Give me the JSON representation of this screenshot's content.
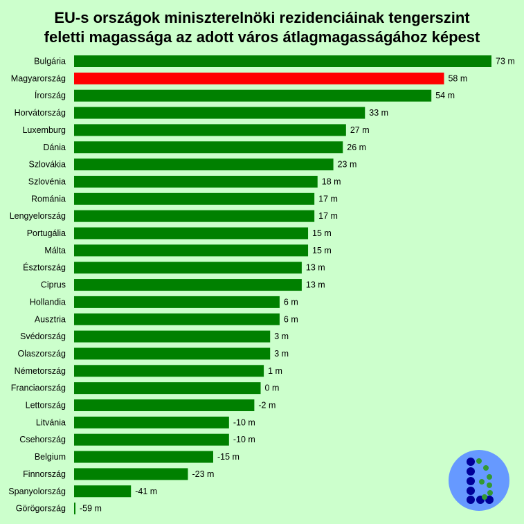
{
  "chart_data": {
    "type": "bar",
    "orientation": "horizontal",
    "title_line1": "EU-s országok miniszterelnöki rezidenciáinak tengerszint",
    "title_line2": "feletti magassága az adott város átlagmagasságához képest",
    "unit": "m",
    "categories": [
      "Bulgária",
      "Magyarország",
      "Írország",
      "Horvátország",
      "Luxemburg",
      "Dánia",
      "Szlovákia",
      "Szlovénia",
      "Románia",
      "Lengyelország",
      "Portugália",
      "Málta",
      "Észtország",
      "Ciprus",
      "Hollandia",
      "Ausztria",
      "Svédország",
      "Olaszország",
      "Németország",
      "Franciaország",
      "Lettország",
      "Litvánia",
      "Csehország",
      "Belgium",
      "Finnország",
      "Spanyolország",
      "Görögország"
    ],
    "values": [
      73,
      58,
      54,
      33,
      27,
      26,
      23,
      18,
      17,
      17,
      15,
      15,
      13,
      13,
      6,
      6,
      3,
      3,
      1,
      0,
      -2,
      -10,
      -10,
      -15,
      -23,
      -41,
      -59
    ],
    "labels": [
      "73 m",
      "58 m",
      "54 m",
      "33 m",
      "27 m",
      "26 m",
      "23 m",
      "18 m",
      "17 m",
      "17 m",
      "15 m",
      "15 m",
      "13 m",
      "13 m",
      "6 m",
      "6 m",
      "3 m",
      "3 m",
      "1 m",
      "0 m",
      "-2 m",
      "-10 m",
      "-10 m",
      "-15 m",
      "-23 m",
      "-41 m",
      "-59 m"
    ],
    "highlight_category": "Magyarország",
    "colors": {
      "bar": "#008000",
      "highlight": "#ff0000",
      "background": "#ccffcc"
    },
    "legend": "none",
    "grid": false
  },
  "logo": {
    "name": "dotted-b-logo",
    "circle_color": "#6699ff",
    "dot_dark": "#000099",
    "dot_green": "#339933"
  }
}
